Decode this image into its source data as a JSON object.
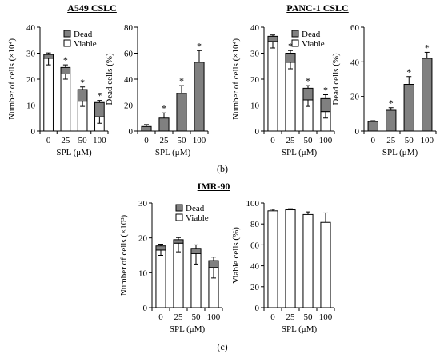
{
  "titles": {
    "a549": "A549 CSLC",
    "panc1": "PANC-1 CSLC",
    "imr90": "IMR-90"
  },
  "panel_labels": {
    "b": "(b)",
    "c": "(c)"
  },
  "colors": {
    "dead": "#808080",
    "viable": "#ffffff",
    "bar_only": "#808080"
  },
  "chart_data": [
    {
      "id": "a549-count",
      "type": "bar",
      "stacked": true,
      "ylabel": "Number of cells (×10⁴)",
      "xlabel": "SPL (μM)",
      "categories": [
        "0",
        "25",
        "50",
        "100"
      ],
      "ylim": [
        0,
        40
      ],
      "yticks": [
        0,
        10,
        20,
        30,
        40
      ],
      "legend": [
        "Dead",
        "Viable"
      ],
      "legend_position": "top-right",
      "series": [
        {
          "name": "Viable",
          "values": [
            28,
            22,
            11.5,
            5.5
          ],
          "err": [
            2.5,
            2,
            2,
            2.5
          ]
        },
        {
          "name": "Dead",
          "values": [
            1.5,
            2.5,
            4.5,
            5.5
          ],
          "err": [
            0.6,
            1,
            1,
            0.8
          ]
        }
      ],
      "stars": [
        false,
        true,
        true,
        true
      ]
    },
    {
      "id": "a549-dead",
      "type": "bar",
      "ylabel": "Dead cells (%)",
      "xlabel": "SPL (μM)",
      "categories": [
        "0",
        "25",
        "50",
        "100"
      ],
      "ylim": [
        0,
        80
      ],
      "yticks": [
        0,
        20,
        40,
        60,
        80
      ],
      "values": [
        3.5,
        10,
        29,
        53
      ],
      "err": [
        1.5,
        4,
        6,
        9
      ],
      "stars": [
        false,
        true,
        true,
        true
      ]
    },
    {
      "id": "panc1-count",
      "type": "bar",
      "stacked": true,
      "ylabel": "Number of cells (×10⁴)",
      "xlabel": "SPL (μM)",
      "categories": [
        "0",
        "25",
        "50",
        "100"
      ],
      "ylim": [
        0,
        40
      ],
      "yticks": [
        0,
        10,
        20,
        30,
        40
      ],
      "legend": [
        "Dead",
        "Viable"
      ],
      "legend_position": "top-right",
      "series": [
        {
          "name": "Viable",
          "values": [
            34.5,
            26.5,
            12,
            7.5
          ],
          "err": [
            2.5,
            2.5,
            2.5,
            2.5
          ]
        },
        {
          "name": "Dead",
          "values": [
            2,
            3.5,
            4.5,
            5
          ],
          "err": [
            0.5,
            1,
            1,
            1.5
          ]
        }
      ],
      "stars": [
        false,
        true,
        true,
        true
      ]
    },
    {
      "id": "panc1-dead",
      "type": "bar",
      "ylabel": "Dead cells (%)",
      "xlabel": "SPL (μM)",
      "categories": [
        "0",
        "25",
        "50",
        "100"
      ],
      "ylim": [
        0,
        60
      ],
      "yticks": [
        0,
        20,
        40,
        60
      ],
      "values": [
        5.5,
        12,
        27,
        42
      ],
      "err": [
        0.5,
        1.5,
        4.5,
        3.5
      ],
      "stars": [
        false,
        true,
        true,
        true
      ]
    },
    {
      "id": "imr90-count",
      "type": "bar",
      "stacked": true,
      "ylabel": "Number of cells (×10³)",
      "xlabel": "SPL (μM)",
      "categories": [
        "0",
        "25",
        "50",
        "100"
      ],
      "ylim": [
        0,
        30
      ],
      "yticks": [
        0,
        10,
        20,
        30
      ],
      "legend": [
        "Dead",
        "Viable"
      ],
      "legend_position": "top-right",
      "series": [
        {
          "name": "Viable",
          "values": [
            16.5,
            18.5,
            15.5,
            11.5
          ],
          "err": [
            1.5,
            2.5,
            3,
            3
          ]
        },
        {
          "name": "Dead",
          "values": [
            1.2,
            1,
            1.5,
            2
          ],
          "err": [
            0.5,
            0.6,
            1,
            1
          ]
        }
      ],
      "stars": [
        false,
        false,
        false,
        false
      ]
    },
    {
      "id": "imr90-viable",
      "type": "bar",
      "ylabel": "Viable cells (%)",
      "xlabel": "SPL (μM)",
      "categories": [
        "0",
        "25",
        "50",
        "100"
      ],
      "ylim": [
        0,
        100
      ],
      "yticks": [
        0,
        20,
        40,
        60,
        80,
        100
      ],
      "values": [
        92.5,
        93.5,
        89,
        81.5
      ],
      "err": [
        1.5,
        1,
        2.5,
        9
      ],
      "bar_color": "white",
      "stars": [
        false,
        false,
        false,
        false
      ]
    }
  ]
}
